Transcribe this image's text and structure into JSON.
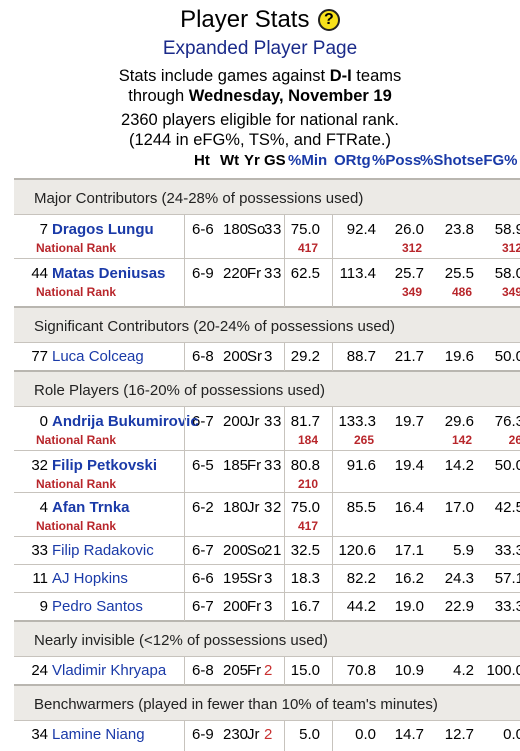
{
  "header": {
    "title": "Player Stats",
    "subtitle": "Expanded Player Page",
    "info_line1": "Stats include games against D-I teams",
    "info_line2_pre": "through ",
    "info_line2_bold": "Wednesday, November 19",
    "info_line3": "2360 players eligible for national rank.",
    "info_line4": "(1244 in eFG%, TS%, and FTRate.)",
    "info_line1_pre": "Stats include games against ",
    "info_line1_bold": "D-I",
    "info_line1_post": " teams"
  },
  "columns": {
    "ht": "Ht",
    "wt": "Wt",
    "yr": "Yr",
    "gs": "GS",
    "min": "%Min",
    "ortg": "ORtg",
    "poss": "%Poss",
    "shots": "%Shots",
    "efg": "eFG%"
  },
  "rank_label": "National Rank",
  "sections": {
    "major": "Major Contributors (24-28% of possessions used)",
    "significant": "Significant Contributors (20-24% of possessions used)",
    "role": "Role Players (16-20% of possessions used)",
    "invisible": "Nearly invisible (<12% of possessions used)",
    "bench": "Benchwarmers (played in fewer than 10% of team's minutes)"
  },
  "players": [
    {
      "num": "7",
      "name": "Dragos Lungu",
      "ht": "6-6",
      "wt": "180",
      "yr": "So",
      "g": "3",
      "gs": "3",
      "min": "75.0",
      "ortg": "92.4",
      "poss": "26.0",
      "shots": "23.8",
      "efg": "58.9",
      "r_min": "417",
      "r_ortg": "",
      "r_poss": "312",
      "r_shots": "",
      "r_efg": "312"
    },
    {
      "num": "44",
      "name": "Matas Deniusas",
      "ht": "6-9",
      "wt": "220",
      "yr": "Fr",
      "g": "3",
      "gs": "3",
      "min": "62.5",
      "ortg": "113.4",
      "poss": "25.7",
      "shots": "25.5",
      "efg": "58.0",
      "r_min": "",
      "r_ortg": "",
      "r_poss": "349",
      "r_shots": "486",
      "r_efg": "349"
    },
    {
      "num": "77",
      "name": "Luca Colceag",
      "ht": "6-8",
      "wt": "200",
      "yr": "Sr",
      "g": "3",
      "gs": "",
      "min": "29.2",
      "ortg": "88.7",
      "poss": "21.7",
      "shots": "19.6",
      "efg": "50.0"
    },
    {
      "num": "0",
      "name": "Andrija Bukumirovic",
      "ht": "6-7",
      "wt": "200",
      "yr": "Jr",
      "g": "3",
      "gs": "3",
      "min": "81.7",
      "ortg": "133.3",
      "poss": "19.7",
      "shots": "29.6",
      "efg": "76.3",
      "r_min": "184",
      "r_ortg": "265",
      "r_poss": "",
      "r_shots": "142",
      "r_efg": "26"
    },
    {
      "num": "32",
      "name": "Filip Petkovski",
      "ht": "6-5",
      "wt": "185",
      "yr": "Fr",
      "g": "3",
      "gs": "3",
      "min": "80.8",
      "ortg": "91.6",
      "poss": "19.4",
      "shots": "14.2",
      "efg": "50.0",
      "r_min": "210",
      "r_ortg": "",
      "r_poss": "",
      "r_shots": "",
      "r_efg": ""
    },
    {
      "num": "4",
      "name": "Afan Trnka",
      "ht": "6-2",
      "wt": "180",
      "yr": "Jr",
      "g": "3",
      "gs": "2",
      "min": "75.0",
      "ortg": "85.5",
      "poss": "16.4",
      "shots": "17.0",
      "efg": "42.5",
      "r_min": "417",
      "r_ortg": "",
      "r_poss": "",
      "r_shots": "",
      "r_efg": ""
    },
    {
      "num": "33",
      "name": "Filip Radakovic",
      "ht": "6-7",
      "wt": "200",
      "yr": "So",
      "g": "2",
      "gs": "1",
      "min": "32.5",
      "ortg": "120.6",
      "poss": "17.1",
      "shots": "5.9",
      "efg": "33.3"
    },
    {
      "num": "11",
      "name": "AJ Hopkins",
      "ht": "6-6",
      "wt": "195",
      "yr": "Sr",
      "g": "3",
      "gs": "",
      "min": "18.3",
      "ortg": "82.2",
      "poss": "16.2",
      "shots": "24.3",
      "efg": "57.1"
    },
    {
      "num": "9",
      "name": "Pedro Santos",
      "ht": "6-7",
      "wt": "200",
      "yr": "Fr",
      "g": "3",
      "gs": "",
      "min": "16.7",
      "ortg": "44.2",
      "poss": "19.0",
      "shots": "22.9",
      "efg": "33.3"
    },
    {
      "num": "24",
      "name": "Vladimir Khryapa",
      "ht": "6-8",
      "wt": "205",
      "yr": "Fr",
      "g": "2",
      "gs": "",
      "min": "15.0",
      "ortg": "70.8",
      "poss": "10.9",
      "shots": "4.2",
      "efg": "100.0"
    },
    {
      "num": "34",
      "name": "Lamine Niang",
      "ht": "6-9",
      "wt": "230",
      "yr": "Jr",
      "g": "2",
      "gs": "",
      "min": "5.0",
      "ortg": "0.0",
      "poss": "14.7",
      "shots": "12.7",
      "efg": "0.0"
    }
  ]
}
